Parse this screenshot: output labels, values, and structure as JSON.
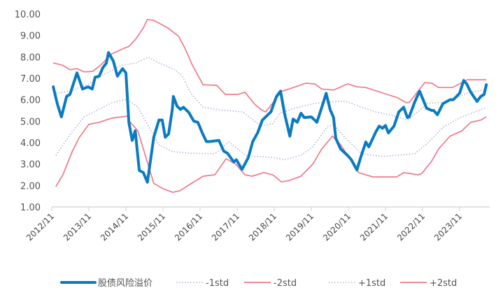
{
  "chart_data": {
    "type": "line",
    "title": "",
    "xlabel": "",
    "ylabel": "",
    "ylim": [
      1,
      10
    ],
    "yticks": [
      "1.00",
      "2.00",
      "3.00",
      "4.00",
      "5.00",
      "6.00",
      "7.00",
      "8.00",
      "9.00",
      "10.00"
    ],
    "xticks": [
      "2012/11",
      "2013/11",
      "2014/11",
      "2015/11",
      "2016/11",
      "2017/11",
      "2018/11",
      "2019/11",
      "2020/11",
      "2021/11",
      "2022/11",
      "2023/11"
    ],
    "xlim_years": [
      2012.83,
      2024.6
    ],
    "grid": false,
    "legend_position": "bottom",
    "colors": {
      "main": "#0a7bc1",
      "band2": "#f07a8a",
      "band1": "#b9b1da",
      "axis": "#d9d9d9"
    },
    "series": [
      {
        "name": "股债风险溢价",
        "style": "thick",
        "points": [
          [
            2012.87,
            6.6
          ],
          [
            2012.98,
            5.8
          ],
          [
            2013.09,
            5.2
          ],
          [
            2013.23,
            6.15
          ],
          [
            2013.32,
            6.25
          ],
          [
            2013.51,
            7.25
          ],
          [
            2013.66,
            6.5
          ],
          [
            2013.81,
            6.6
          ],
          [
            2013.92,
            6.5
          ],
          [
            2014.0,
            7.05
          ],
          [
            2014.11,
            7.1
          ],
          [
            2014.21,
            7.5
          ],
          [
            2014.3,
            7.7
          ],
          [
            2014.36,
            8.2
          ],
          [
            2014.49,
            7.8
          ],
          [
            2014.6,
            7.1
          ],
          [
            2014.74,
            7.45
          ],
          [
            2014.83,
            7.25
          ],
          [
            2014.91,
            4.95
          ],
          [
            2015.0,
            4.1
          ],
          [
            2015.08,
            4.55
          ],
          [
            2015.19,
            2.7
          ],
          [
            2015.3,
            2.6
          ],
          [
            2015.41,
            2.15
          ],
          [
            2015.58,
            4.25
          ],
          [
            2015.72,
            5.05
          ],
          [
            2015.81,
            5.05
          ],
          [
            2015.89,
            4.25
          ],
          [
            2015.98,
            4.4
          ],
          [
            2016.08,
            5.55
          ],
          [
            2016.11,
            6.15
          ],
          [
            2016.21,
            5.7
          ],
          [
            2016.3,
            5.55
          ],
          [
            2016.38,
            5.65
          ],
          [
            2016.53,
            5.4
          ],
          [
            2016.66,
            5.0
          ],
          [
            2016.77,
            4.95
          ],
          [
            2016.89,
            4.45
          ],
          [
            2017.0,
            4.05
          ],
          [
            2017.09,
            4.05
          ],
          [
            2017.34,
            4.1
          ],
          [
            2017.47,
            3.6
          ],
          [
            2017.57,
            3.5
          ],
          [
            2017.74,
            3.1
          ],
          [
            2017.81,
            3.2
          ],
          [
            2017.96,
            2.75
          ],
          [
            2018.13,
            3.3
          ],
          [
            2018.25,
            4.05
          ],
          [
            2018.38,
            4.45
          ],
          [
            2018.51,
            5.05
          ],
          [
            2018.6,
            5.2
          ],
          [
            2018.74,
            5.43
          ],
          [
            2018.89,
            6.15
          ],
          [
            2019.0,
            6.4
          ],
          [
            2019.11,
            5.35
          ],
          [
            2019.25,
            4.3
          ],
          [
            2019.34,
            5.1
          ],
          [
            2019.45,
            4.95
          ],
          [
            2019.55,
            5.37
          ],
          [
            2019.64,
            5.17
          ],
          [
            2019.83,
            5.2
          ],
          [
            2019.98,
            4.95
          ],
          [
            2020.15,
            5.85
          ],
          [
            2020.23,
            6.3
          ],
          [
            2020.34,
            5.53
          ],
          [
            2020.43,
            5.17
          ],
          [
            2020.49,
            4.2
          ],
          [
            2020.62,
            3.7
          ],
          [
            2020.81,
            3.4
          ],
          [
            2020.91,
            3.2
          ],
          [
            2021.06,
            2.72
          ],
          [
            2021.15,
            3.25
          ],
          [
            2021.3,
            4.03
          ],
          [
            2021.38,
            3.8
          ],
          [
            2021.57,
            4.5
          ],
          [
            2021.66,
            4.77
          ],
          [
            2021.75,
            4.67
          ],
          [
            2021.83,
            4.8
          ],
          [
            2021.91,
            4.45
          ],
          [
            2022.06,
            4.77
          ],
          [
            2022.19,
            5.43
          ],
          [
            2022.32,
            5.65
          ],
          [
            2022.42,
            5.17
          ],
          [
            2022.47,
            5.2
          ],
          [
            2022.62,
            5.9
          ],
          [
            2022.75,
            6.4
          ],
          [
            2022.81,
            6.15
          ],
          [
            2022.94,
            5.6
          ],
          [
            2023.08,
            5.5
          ],
          [
            2023.13,
            5.5
          ],
          [
            2023.23,
            5.3
          ],
          [
            2023.38,
            5.82
          ],
          [
            2023.57,
            6.0
          ],
          [
            2023.66,
            6.0
          ],
          [
            2023.83,
            6.3
          ],
          [
            2023.94,
            6.9
          ],
          [
            2024.02,
            6.74
          ],
          [
            2024.13,
            6.35
          ],
          [
            2024.3,
            5.92
          ],
          [
            2024.4,
            6.15
          ],
          [
            2024.49,
            6.25
          ],
          [
            2024.55,
            6.7
          ]
        ]
      },
      {
        "name": "-1std",
        "style": "dotted",
        "points": [
          [
            2012.94,
            3.4
          ],
          [
            2013.32,
            4.36
          ],
          [
            2013.7,
            5.2
          ],
          [
            2014.08,
            5.53
          ],
          [
            2014.45,
            5.86
          ],
          [
            2014.87,
            6.02
          ],
          [
            2015.15,
            5.66
          ],
          [
            2015.4,
            4.88
          ],
          [
            2015.72,
            3.9
          ],
          [
            2016.09,
            3.58
          ],
          [
            2016.58,
            3.5
          ],
          [
            2017.23,
            3.48
          ],
          [
            2017.6,
            4.03
          ],
          [
            2018.09,
            3.38
          ],
          [
            2018.79,
            3.31
          ],
          [
            2019.11,
            3.2
          ],
          [
            2019.55,
            3.4
          ],
          [
            2019.87,
            3.8
          ],
          [
            2020.25,
            4.72
          ],
          [
            2020.43,
            4.85
          ],
          [
            2020.74,
            4.23
          ],
          [
            2021.19,
            3.48
          ],
          [
            2021.75,
            3.35
          ],
          [
            2022.62,
            3.48
          ],
          [
            2023.0,
            4.03
          ],
          [
            2023.38,
            4.72
          ],
          [
            2023.89,
            5.2
          ],
          [
            2024.55,
            5.63
          ]
        ]
      },
      {
        "name": "-2std",
        "style": "solid",
        "points": [
          [
            2012.94,
            1.95
          ],
          [
            2013.13,
            2.5
          ],
          [
            2013.38,
            3.58
          ],
          [
            2013.57,
            4.23
          ],
          [
            2013.83,
            4.85
          ],
          [
            2014.11,
            4.95
          ],
          [
            2014.45,
            5.14
          ],
          [
            2014.87,
            5.24
          ],
          [
            2014.92,
            5.0
          ],
          [
            2015.15,
            4.55
          ],
          [
            2015.34,
            3.48
          ],
          [
            2015.58,
            2.1
          ],
          [
            2015.83,
            1.85
          ],
          [
            2016.09,
            1.68
          ],
          [
            2016.28,
            1.75
          ],
          [
            2016.58,
            2.08
          ],
          [
            2016.91,
            2.43
          ],
          [
            2017.23,
            2.5
          ],
          [
            2017.53,
            3.25
          ],
          [
            2017.79,
            3.0
          ],
          [
            2018.04,
            2.5
          ],
          [
            2018.23,
            2.43
          ],
          [
            2018.55,
            2.6
          ],
          [
            2018.79,
            2.5
          ],
          [
            2019.02,
            2.17
          ],
          [
            2019.23,
            2.23
          ],
          [
            2019.55,
            2.43
          ],
          [
            2019.87,
            3.0
          ],
          [
            2020.11,
            3.7
          ],
          [
            2020.4,
            4.3
          ],
          [
            2020.62,
            3.9
          ],
          [
            2020.87,
            3.25
          ],
          [
            2021.11,
            2.6
          ],
          [
            2021.49,
            2.4
          ],
          [
            2022.13,
            2.4
          ],
          [
            2022.32,
            2.6
          ],
          [
            2022.7,
            2.5
          ],
          [
            2022.81,
            2.56
          ],
          [
            2023.08,
            3.15
          ],
          [
            2023.26,
            3.7
          ],
          [
            2023.57,
            4.3
          ],
          [
            2023.89,
            4.55
          ],
          [
            2024.13,
            4.95
          ],
          [
            2024.4,
            5.05
          ],
          [
            2024.55,
            5.2
          ]
        ]
      },
      {
        "name": "+1std",
        "style": "dotted",
        "points": [
          [
            2012.94,
            6.3
          ],
          [
            2013.32,
            6.4
          ],
          [
            2013.83,
            6.74
          ],
          [
            2014.21,
            7.16
          ],
          [
            2014.7,
            7.6
          ],
          [
            2015.08,
            7.7
          ],
          [
            2015.43,
            7.98
          ],
          [
            2015.72,
            7.72
          ],
          [
            2016.15,
            7.39
          ],
          [
            2016.34,
            7.13
          ],
          [
            2016.58,
            6.3
          ],
          [
            2016.91,
            5.66
          ],
          [
            2017.34,
            5.53
          ],
          [
            2017.98,
            5.43
          ],
          [
            2018.23,
            5.1
          ],
          [
            2018.47,
            4.77
          ],
          [
            2018.79,
            4.88
          ],
          [
            2018.98,
            5.37
          ],
          [
            2019.36,
            5.6
          ],
          [
            2019.92,
            5.83
          ],
          [
            2020.49,
            5.92
          ],
          [
            2020.77,
            5.92
          ],
          [
            2021.11,
            5.7
          ],
          [
            2021.57,
            5.43
          ],
          [
            2022.0,
            5.27
          ],
          [
            2022.43,
            5.05
          ],
          [
            2022.75,
            5.5
          ],
          [
            2022.94,
            5.83
          ],
          [
            2023.38,
            5.87
          ],
          [
            2023.64,
            6.0
          ],
          [
            2024.02,
            6.3
          ],
          [
            2024.55,
            6.48
          ]
        ]
      },
      {
        "name": "+2std",
        "style": "solid",
        "points": [
          [
            2012.87,
            7.72
          ],
          [
            2013.13,
            7.6
          ],
          [
            2013.32,
            7.4
          ],
          [
            2013.51,
            7.45
          ],
          [
            2013.7,
            7.3
          ],
          [
            2013.94,
            7.33
          ],
          [
            2014.17,
            7.65
          ],
          [
            2014.45,
            8.14
          ],
          [
            2014.74,
            8.37
          ],
          [
            2014.92,
            8.5
          ],
          [
            2015.11,
            8.86
          ],
          [
            2015.3,
            9.35
          ],
          [
            2015.41,
            9.74
          ],
          [
            2015.58,
            9.7
          ],
          [
            2015.96,
            9.35
          ],
          [
            2016.25,
            8.96
          ],
          [
            2016.43,
            8.37
          ],
          [
            2016.62,
            7.62
          ],
          [
            2016.91,
            6.7
          ],
          [
            2017.28,
            6.67
          ],
          [
            2017.51,
            6.25
          ],
          [
            2017.85,
            6.25
          ],
          [
            2018.04,
            6.35
          ],
          [
            2018.32,
            5.76
          ],
          [
            2018.51,
            5.5
          ],
          [
            2018.6,
            5.43
          ],
          [
            2019.04,
            6.4
          ],
          [
            2019.23,
            6.5
          ],
          [
            2019.68,
            6.77
          ],
          [
            2019.92,
            6.74
          ],
          [
            2020.11,
            6.5
          ],
          [
            2020.43,
            6.45
          ],
          [
            2020.81,
            6.74
          ],
          [
            2021.06,
            6.6
          ],
          [
            2021.3,
            6.57
          ],
          [
            2021.87,
            6.25
          ],
          [
            2022.15,
            6.1
          ],
          [
            2022.38,
            5.87
          ],
          [
            2022.47,
            5.87
          ],
          [
            2022.89,
            6.8
          ],
          [
            2023.08,
            6.77
          ],
          [
            2023.26,
            6.57
          ],
          [
            2023.64,
            6.57
          ],
          [
            2023.83,
            6.74
          ],
          [
            2024.04,
            6.93
          ],
          [
            2024.55,
            6.93
          ]
        ]
      }
    ]
  }
}
